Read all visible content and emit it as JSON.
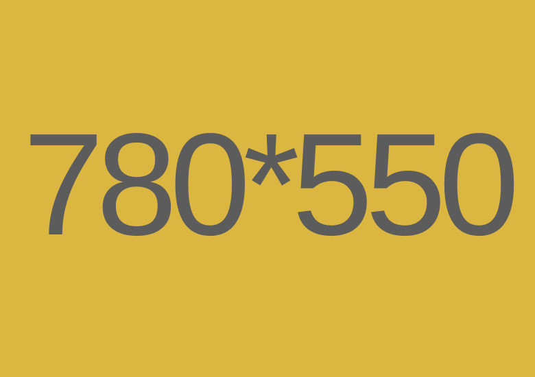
{
  "placeholder": {
    "text": "780*550",
    "background_color": "#DBB640",
    "text_color": "#5C5C5C"
  }
}
